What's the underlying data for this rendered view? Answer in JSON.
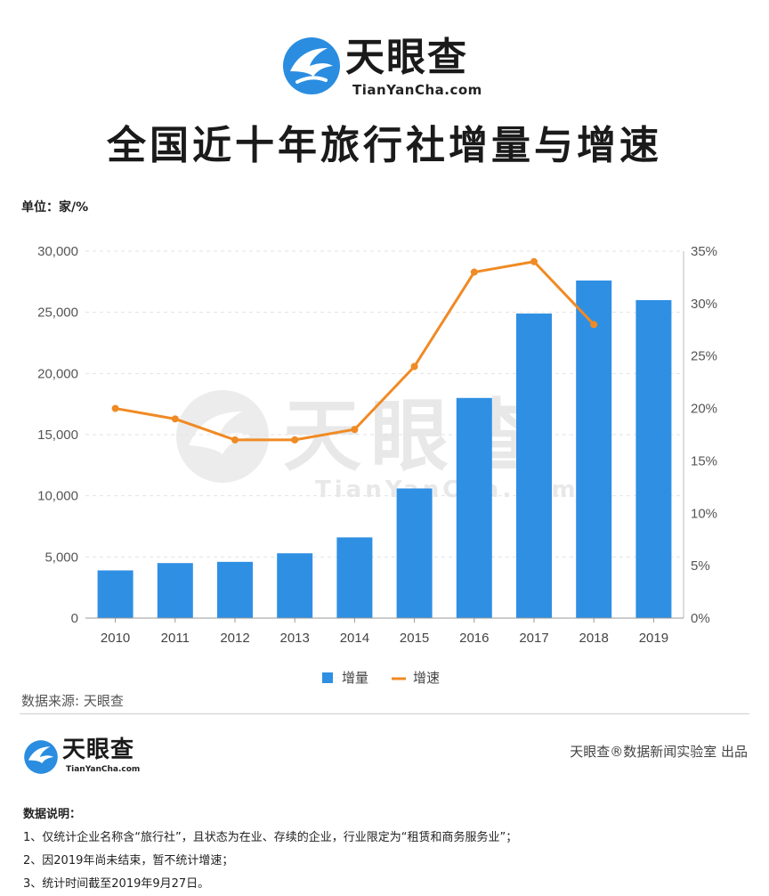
{
  "brand": {
    "name": "天眼查",
    "url": "TianYanCha.com",
    "url_small": "TianYanCha.com",
    "logo_color": "#2a8de0"
  },
  "title": "全国近十年旅行社增量与增速",
  "unit_label": "单位：家/%",
  "source": "数据来源: 天眼查",
  "credit": "天眼查®数据新闻实验室 出品",
  "notes": {
    "title": "数据说明：",
    "items": [
      "1、仅统计企业名称含“旅行社”，且状态为在业、存续的企业，行业限定为“租赁和商务服务业”；",
      "2、因2019年尚未结束，暂不统计增速；",
      "3、统计时间截至2019年9月27日。"
    ]
  },
  "chart_data": {
    "type": "bar",
    "categories": [
      "2010",
      "2011",
      "2012",
      "2013",
      "2014",
      "2015",
      "2016",
      "2017",
      "2018",
      "2019"
    ],
    "series": [
      {
        "name": "增量",
        "type": "bar",
        "axis": "left",
        "color": "#2f8fe3",
        "values": [
          3900,
          4500,
          4600,
          5300,
          6600,
          10600,
          18000,
          24900,
          27600,
          26000
        ]
      },
      {
        "name": "增速",
        "type": "line",
        "axis": "right",
        "color": "#f08a24",
        "values": [
          20,
          19,
          17,
          17,
          18,
          24,
          33,
          34,
          28,
          null
        ]
      }
    ],
    "y_left": {
      "min": 0,
      "max": 30000,
      "ticks": [
        "0",
        "5,000",
        "10,000",
        "15,000",
        "20,000",
        "25,000",
        "30,000"
      ]
    },
    "y_right": {
      "min": 0,
      "max": 35,
      "ticks": [
        "0%",
        "5%",
        "10%",
        "15%",
        "20%",
        "25%",
        "30%",
        "35%"
      ]
    },
    "grid": "horizontal dashed",
    "legend_position": "bottom-center"
  }
}
